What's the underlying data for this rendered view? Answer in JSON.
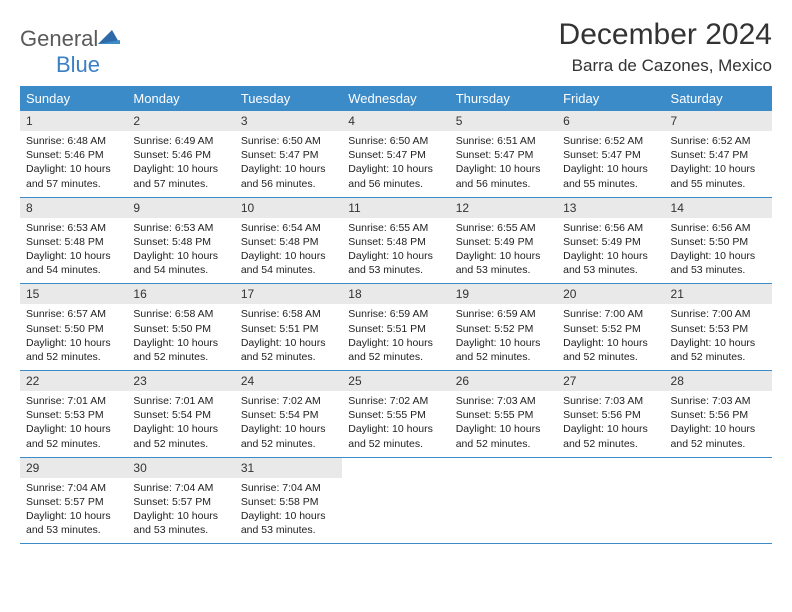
{
  "brand": {
    "part1": "General",
    "part2": "Blue"
  },
  "title": "December 2024",
  "location": "Barra de Cazones, Mexico",
  "colors": {
    "header_bg": "#3b8bc9",
    "header_text": "#ffffff",
    "daynum_bg": "#e9e9e9",
    "border": "#3b8bc9",
    "brand_gray": "#5a5a5a",
    "brand_blue": "#3b7fc4",
    "body_text": "#222222",
    "page_bg": "#ffffff"
  },
  "typography": {
    "title_fontsize": 30,
    "subtitle_fontsize": 17,
    "dayheader_fontsize": 13,
    "daynum_fontsize": 12,
    "body_fontsize": 10.5
  },
  "dayHeaders": [
    "Sunday",
    "Monday",
    "Tuesday",
    "Wednesday",
    "Thursday",
    "Friday",
    "Saturday"
  ],
  "weeks": [
    [
      {
        "num": "1",
        "sunrise": "Sunrise: 6:48 AM",
        "sunset": "Sunset: 5:46 PM",
        "daylight": "Daylight: 10 hours and 57 minutes."
      },
      {
        "num": "2",
        "sunrise": "Sunrise: 6:49 AM",
        "sunset": "Sunset: 5:46 PM",
        "daylight": "Daylight: 10 hours and 57 minutes."
      },
      {
        "num": "3",
        "sunrise": "Sunrise: 6:50 AM",
        "sunset": "Sunset: 5:47 PM",
        "daylight": "Daylight: 10 hours and 56 minutes."
      },
      {
        "num": "4",
        "sunrise": "Sunrise: 6:50 AM",
        "sunset": "Sunset: 5:47 PM",
        "daylight": "Daylight: 10 hours and 56 minutes."
      },
      {
        "num": "5",
        "sunrise": "Sunrise: 6:51 AM",
        "sunset": "Sunset: 5:47 PM",
        "daylight": "Daylight: 10 hours and 56 minutes."
      },
      {
        "num": "6",
        "sunrise": "Sunrise: 6:52 AM",
        "sunset": "Sunset: 5:47 PM",
        "daylight": "Daylight: 10 hours and 55 minutes."
      },
      {
        "num": "7",
        "sunrise": "Sunrise: 6:52 AM",
        "sunset": "Sunset: 5:47 PM",
        "daylight": "Daylight: 10 hours and 55 minutes."
      }
    ],
    [
      {
        "num": "8",
        "sunrise": "Sunrise: 6:53 AM",
        "sunset": "Sunset: 5:48 PM",
        "daylight": "Daylight: 10 hours and 54 minutes."
      },
      {
        "num": "9",
        "sunrise": "Sunrise: 6:53 AM",
        "sunset": "Sunset: 5:48 PM",
        "daylight": "Daylight: 10 hours and 54 minutes."
      },
      {
        "num": "10",
        "sunrise": "Sunrise: 6:54 AM",
        "sunset": "Sunset: 5:48 PM",
        "daylight": "Daylight: 10 hours and 54 minutes."
      },
      {
        "num": "11",
        "sunrise": "Sunrise: 6:55 AM",
        "sunset": "Sunset: 5:48 PM",
        "daylight": "Daylight: 10 hours and 53 minutes."
      },
      {
        "num": "12",
        "sunrise": "Sunrise: 6:55 AM",
        "sunset": "Sunset: 5:49 PM",
        "daylight": "Daylight: 10 hours and 53 minutes."
      },
      {
        "num": "13",
        "sunrise": "Sunrise: 6:56 AM",
        "sunset": "Sunset: 5:49 PM",
        "daylight": "Daylight: 10 hours and 53 minutes."
      },
      {
        "num": "14",
        "sunrise": "Sunrise: 6:56 AM",
        "sunset": "Sunset: 5:50 PM",
        "daylight": "Daylight: 10 hours and 53 minutes."
      }
    ],
    [
      {
        "num": "15",
        "sunrise": "Sunrise: 6:57 AM",
        "sunset": "Sunset: 5:50 PM",
        "daylight": "Daylight: 10 hours and 52 minutes."
      },
      {
        "num": "16",
        "sunrise": "Sunrise: 6:58 AM",
        "sunset": "Sunset: 5:50 PM",
        "daylight": "Daylight: 10 hours and 52 minutes."
      },
      {
        "num": "17",
        "sunrise": "Sunrise: 6:58 AM",
        "sunset": "Sunset: 5:51 PM",
        "daylight": "Daylight: 10 hours and 52 minutes."
      },
      {
        "num": "18",
        "sunrise": "Sunrise: 6:59 AM",
        "sunset": "Sunset: 5:51 PM",
        "daylight": "Daylight: 10 hours and 52 minutes."
      },
      {
        "num": "19",
        "sunrise": "Sunrise: 6:59 AM",
        "sunset": "Sunset: 5:52 PM",
        "daylight": "Daylight: 10 hours and 52 minutes."
      },
      {
        "num": "20",
        "sunrise": "Sunrise: 7:00 AM",
        "sunset": "Sunset: 5:52 PM",
        "daylight": "Daylight: 10 hours and 52 minutes."
      },
      {
        "num": "21",
        "sunrise": "Sunrise: 7:00 AM",
        "sunset": "Sunset: 5:53 PM",
        "daylight": "Daylight: 10 hours and 52 minutes."
      }
    ],
    [
      {
        "num": "22",
        "sunrise": "Sunrise: 7:01 AM",
        "sunset": "Sunset: 5:53 PM",
        "daylight": "Daylight: 10 hours and 52 minutes."
      },
      {
        "num": "23",
        "sunrise": "Sunrise: 7:01 AM",
        "sunset": "Sunset: 5:54 PM",
        "daylight": "Daylight: 10 hours and 52 minutes."
      },
      {
        "num": "24",
        "sunrise": "Sunrise: 7:02 AM",
        "sunset": "Sunset: 5:54 PM",
        "daylight": "Daylight: 10 hours and 52 minutes."
      },
      {
        "num": "25",
        "sunrise": "Sunrise: 7:02 AM",
        "sunset": "Sunset: 5:55 PM",
        "daylight": "Daylight: 10 hours and 52 minutes."
      },
      {
        "num": "26",
        "sunrise": "Sunrise: 7:03 AM",
        "sunset": "Sunset: 5:55 PM",
        "daylight": "Daylight: 10 hours and 52 minutes."
      },
      {
        "num": "27",
        "sunrise": "Sunrise: 7:03 AM",
        "sunset": "Sunset: 5:56 PM",
        "daylight": "Daylight: 10 hours and 52 minutes."
      },
      {
        "num": "28",
        "sunrise": "Sunrise: 7:03 AM",
        "sunset": "Sunset: 5:56 PM",
        "daylight": "Daylight: 10 hours and 52 minutes."
      }
    ],
    [
      {
        "num": "29",
        "sunrise": "Sunrise: 7:04 AM",
        "sunset": "Sunset: 5:57 PM",
        "daylight": "Daylight: 10 hours and 53 minutes."
      },
      {
        "num": "30",
        "sunrise": "Sunrise: 7:04 AM",
        "sunset": "Sunset: 5:57 PM",
        "daylight": "Daylight: 10 hours and 53 minutes."
      },
      {
        "num": "31",
        "sunrise": "Sunrise: 7:04 AM",
        "sunset": "Sunset: 5:58 PM",
        "daylight": "Daylight: 10 hours and 53 minutes."
      },
      null,
      null,
      null,
      null
    ]
  ]
}
